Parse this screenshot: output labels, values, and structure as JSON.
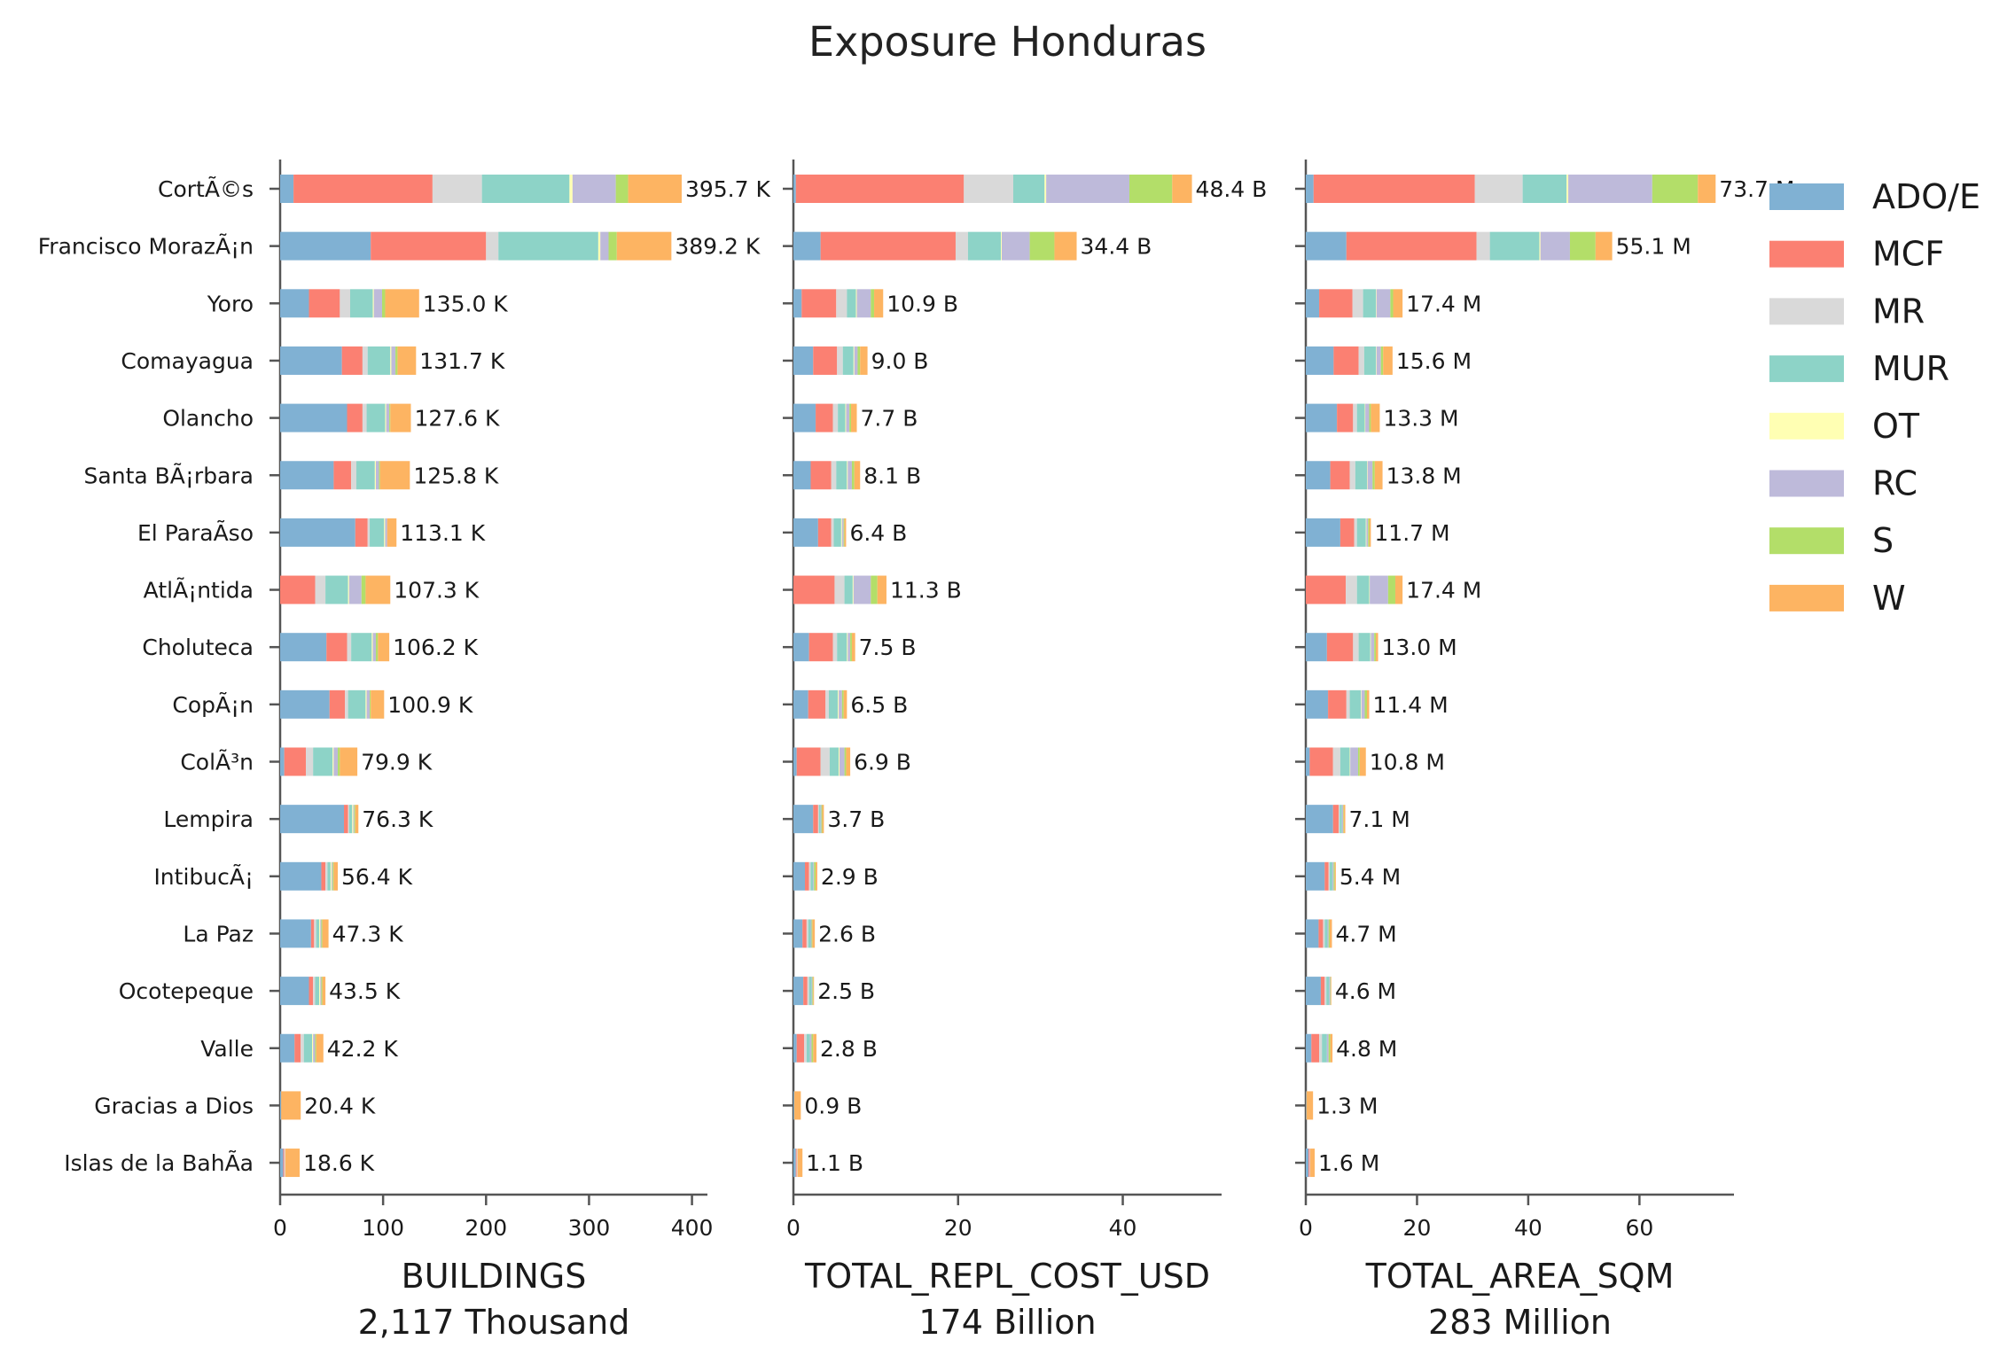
{
  "chart_data": {
    "title": "Exposure Honduras",
    "type": "bar",
    "orientation": "horizontal",
    "stacked": true,
    "grid": false,
    "legend_position": "top-right",
    "legend": [
      {
        "name": "ADO/E",
        "color": "#80b1d3"
      },
      {
        "name": "MCF",
        "color": "#fb8072"
      },
      {
        "name": "MR",
        "color": "#d9d9d9"
      },
      {
        "name": "MUR",
        "color": "#8dd3c7"
      },
      {
        "name": "OT",
        "color": "#ffffb3"
      },
      {
        "name": "RC",
        "color": "#bebada"
      },
      {
        "name": "S",
        "color": "#b3de69"
      },
      {
        "name": "W",
        "color": "#fdb462"
      }
    ],
    "categories": [
      "CortÃ©s",
      "Francisco MorazÃ¡n",
      "Yoro",
      "Comayagua",
      "Olancho",
      "Santa BÃ¡rbara",
      "El ParaÃ­so",
      "AtlÃ¡ntida",
      "Choluteca",
      "CopÃ¡n",
      "ColÃ³n",
      "Lempira",
      "IntibucÃ¡",
      "La Paz",
      "Ocotepeque",
      "Valle",
      "Gracias a Dios",
      "Islas de la BahÃ­a"
    ],
    "panels": [
      {
        "xlabel": "BUILDINGS",
        "subtitle": "2,117 Thousand",
        "xlim": [
          0,
          415
        ],
        "xticks": [
          "0",
          "100",
          "200",
          "300",
          "400"
        ],
        "totals_labels": [
          "395.7 K",
          "389.2 K",
          "135.0 K",
          "131.7 K",
          "127.6 K",
          "125.8 K",
          "113.1 K",
          "107.3 K",
          "106.2 K",
          "100.9 K",
          "79.9 K",
          "76.3 K",
          "56.4 K",
          "47.3 K",
          "43.5 K",
          "42.2 K",
          "20.4 K",
          "18.6 K"
        ],
        "stacks": [
          [
            13,
            135,
            48,
            85,
            3,
            42,
            12,
            52
          ],
          [
            88,
            112,
            12,
            97,
            2,
            8,
            8,
            53
          ],
          [
            28,
            30,
            10,
            22,
            1,
            8,
            3,
            33
          ],
          [
            60,
            20,
            5,
            22,
            1,
            4,
            2,
            18
          ],
          [
            65,
            15,
            4,
            18,
            1,
            3,
            1,
            20
          ],
          [
            52,
            17,
            5,
            18,
            1,
            3,
            1,
            29
          ],
          [
            73,
            12,
            2,
            14,
            1,
            2,
            0,
            9
          ],
          [
            0,
            34,
            10,
            22,
            1,
            12,
            4,
            24
          ],
          [
            45,
            20,
            4,
            20,
            1,
            3,
            2,
            11
          ],
          [
            48,
            15,
            3,
            17,
            1,
            3,
            1,
            13
          ],
          [
            4,
            21,
            7,
            19,
            1,
            4,
            2,
            17
          ],
          [
            62,
            4,
            1,
            3,
            1,
            1,
            1,
            3
          ],
          [
            40,
            4,
            2,
            3,
            1,
            1,
            1,
            4
          ],
          [
            30,
            3,
            2,
            3,
            1,
            1,
            1,
            6
          ],
          [
            28,
            4,
            2,
            4,
            1,
            1,
            1,
            3
          ],
          [
            14,
            6,
            3,
            8,
            1,
            2,
            1,
            7
          ],
          [
            1,
            0,
            0,
            0,
            0,
            0,
            0,
            19
          ],
          [
            3,
            1,
            1,
            0,
            0,
            0,
            0,
            14
          ]
        ]
      },
      {
        "xlabel": "TOTAL_REPL_COST_USD",
        "subtitle": "174 Billion",
        "xlim": [
          0,
          52
        ],
        "xticks": [
          "0",
          "20",
          "40"
        ],
        "totals_labels": [
          "48.4 B",
          "34.4 B",
          "10.9 B",
          "9.0 B",
          "7.7 B",
          "8.1 B",
          "6.4 B",
          "11.3 B",
          "7.5 B",
          "6.5 B",
          "6.9 B",
          "3.7 B",
          "2.9 B",
          "2.6 B",
          "2.5 B",
          "2.8 B",
          "0.9 B",
          "1.1 B"
        ],
        "stacks": [
          [
            0.3,
            20.4,
            6.0,
            3.8,
            0.2,
            10.1,
            5.2,
            2.4
          ],
          [
            3.3,
            16.4,
            1.5,
            4.0,
            0.1,
            3.4,
            3.0,
            2.7
          ],
          [
            1.0,
            4.2,
            1.3,
            1.1,
            0.1,
            1.7,
            0.4,
            1.1
          ],
          [
            2.4,
            2.9,
            0.7,
            1.3,
            0.1,
            0.4,
            0.3,
            0.9
          ],
          [
            2.7,
            2.1,
            0.6,
            0.9,
            0.1,
            0.4,
            0.2,
            0.7
          ],
          [
            2.1,
            2.5,
            0.6,
            1.3,
            0.1,
            0.5,
            0.3,
            0.7
          ],
          [
            3.0,
            1.6,
            0.3,
            0.9,
            0.1,
            0.2,
            0.1,
            0.2
          ],
          [
            0.0,
            5.0,
            1.2,
            1.0,
            0.1,
            2.1,
            0.8,
            1.1
          ],
          [
            1.9,
            2.9,
            0.5,
            1.2,
            0.1,
            0.3,
            0.2,
            0.4
          ],
          [
            1.8,
            2.1,
            0.4,
            1.1,
            0.1,
            0.4,
            0.2,
            0.4
          ],
          [
            0.4,
            2.9,
            1.1,
            1.1,
            0.1,
            0.6,
            0.2,
            0.5
          ],
          [
            2.4,
            0.6,
            0.1,
            0.2,
            0.0,
            0.1,
            0.1,
            0.2
          ],
          [
            1.4,
            0.5,
            0.2,
            0.3,
            0.0,
            0.1,
            0.2,
            0.2
          ],
          [
            1.1,
            0.5,
            0.2,
            0.3,
            0.0,
            0.1,
            0.1,
            0.3
          ],
          [
            1.2,
            0.5,
            0.2,
            0.3,
            0.0,
            0.1,
            0.1,
            0.1
          ],
          [
            0.4,
            0.9,
            0.3,
            0.4,
            0.0,
            0.2,
            0.2,
            0.4
          ],
          [
            0.1,
            0.0,
            0.0,
            0.0,
            0.0,
            0.0,
            0.0,
            0.8
          ],
          [
            0.3,
            0.1,
            0.1,
            0.0,
            0.0,
            0.0,
            0.0,
            0.6
          ]
        ]
      },
      {
        "xlabel": "TOTAL_AREA_SQM",
        "subtitle": "283 Million",
        "xlim": [
          0,
          77
        ],
        "xticks": [
          "0",
          "20",
          "40",
          "60"
        ],
        "totals_labels": [
          "73.7 M",
          "55.1 M",
          "17.4 M",
          "15.6 M",
          "13.3 M",
          "13.8 M",
          "11.7 M",
          "17.4 M",
          "13.0 M",
          "11.4 M",
          "10.8 M",
          "7.1 M",
          "5.4 M",
          "4.7 M",
          "4.6 M",
          "4.8 M",
          "1.3 M",
          "1.6 M"
        ],
        "stacks": [
          [
            1.4,
            29.0,
            8.6,
            7.9,
            0.3,
            15.1,
            8.2,
            3.2
          ],
          [
            7.3,
            23.4,
            2.4,
            8.9,
            0.2,
            5.3,
            4.6,
            3.0
          ],
          [
            2.4,
            6.0,
            1.9,
            2.3,
            0.1,
            2.5,
            0.5,
            1.7
          ],
          [
            5.0,
            4.5,
            1.0,
            2.1,
            0.1,
            0.8,
            0.4,
            1.7
          ],
          [
            5.6,
            2.9,
            0.7,
            1.4,
            0.1,
            0.7,
            0.3,
            1.6
          ],
          [
            4.4,
            3.5,
            1.0,
            2.1,
            0.1,
            0.9,
            0.4,
            1.4
          ],
          [
            6.2,
            2.5,
            0.5,
            1.6,
            0.1,
            0.3,
            0.2,
            0.3
          ],
          [
            0.0,
            7.2,
            2.0,
            2.2,
            0.1,
            3.3,
            1.3,
            1.3
          ],
          [
            3.8,
            4.7,
            1.0,
            2.1,
            0.1,
            0.6,
            0.3,
            0.4
          ],
          [
            4.0,
            3.3,
            0.6,
            2.0,
            0.1,
            0.6,
            0.4,
            0.4
          ],
          [
            0.7,
            4.2,
            1.3,
            1.7,
            0.1,
            1.4,
            0.3,
            1.1
          ],
          [
            4.9,
            1.0,
            0.2,
            0.4,
            0.0,
            0.2,
            0.1,
            0.3
          ],
          [
            3.4,
            0.7,
            0.2,
            0.5,
            0.0,
            0.2,
            0.2,
            0.2
          ],
          [
            2.3,
            0.8,
            0.3,
            0.5,
            0.0,
            0.2,
            0.2,
            0.4
          ],
          [
            2.7,
            0.7,
            0.3,
            0.5,
            0.0,
            0.2,
            0.1,
            0.1
          ],
          [
            1.0,
            1.4,
            0.5,
            0.9,
            0.0,
            0.3,
            0.3,
            0.4
          ],
          [
            0.1,
            0.0,
            0.0,
            0.0,
            0.0,
            0.0,
            0.0,
            1.2
          ],
          [
            0.5,
            0.2,
            0.1,
            0.0,
            0.0,
            0.0,
            0.0,
            0.8
          ]
        ]
      }
    ]
  }
}
